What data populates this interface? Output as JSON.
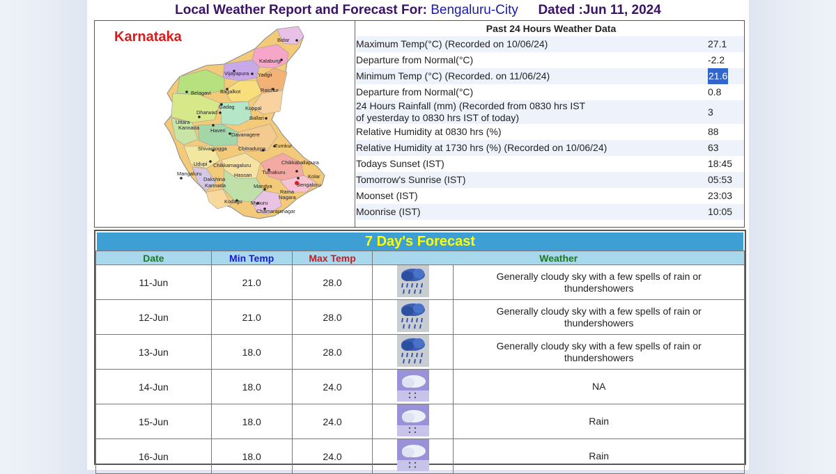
{
  "header": {
    "prefix": "Local Weather Report and Forecast For:",
    "city": "Bengaluru-City",
    "dated": "Dated :Jun 11, 2024"
  },
  "map": {
    "title": "Karnataka",
    "places": [
      "Bidar",
      "Kalaburgi",
      "Vijayapura",
      "Yadgir",
      "Belagavi",
      "Bagalkot",
      "Raichur",
      "Gadag",
      "Koppal",
      "Dharwad",
      "Ballari",
      "Uttara",
      "Kannada",
      "Haveri",
      "Davanagere",
      "Shivamogga",
      "Chitradurga",
      "Tumkur",
      "Udupi",
      "Chikkamagaluru",
      "Chikkaballapura",
      "Mangaluru",
      "Hassan",
      "Tumakuru",
      "Dakshina",
      "Kannada",
      "Kolar",
      "Bengaluru",
      "Mandya",
      "Rama",
      "Nagara",
      "Kodagu",
      "Mysuru",
      "Chamarajanagar"
    ]
  },
  "past24": {
    "title": "Past 24 Hours Weather Data",
    "rows": [
      {
        "label": "Maximum Temp(°C) (Recorded on 10/06/24)",
        "value": "27.1"
      },
      {
        "label": "Departure from Normal(°C)",
        "value": "-2.2"
      },
      {
        "label": "Minimum Temp (°C) (Recorded. on 11/06/24)",
        "value": "21.6"
      },
      {
        "label": "Departure from Normal(°C)",
        "value": "0.8"
      },
      {
        "label": "24 Hours Rainfall (mm) (Recorded from 0830 hrs IST",
        "label2": "of yesterday to 0830 hrs IST of today)",
        "value": "3"
      },
      {
        "label": "Relative Humidity at 0830 hrs (%)",
        "value": "88"
      },
      {
        "label": "Relative Humidity at 1730 hrs (%) (Recorded on 10/06/24)",
        "value": "63"
      },
      {
        "label": "Todays Sunset (IST)",
        "value": "18:45"
      },
      {
        "label": "Tomorrow's Sunrise (IST)",
        "value": "05:53"
      },
      {
        "label": "Moonset (IST)",
        "value": "23:03"
      },
      {
        "label": "Moonrise (IST)",
        "value": "10:05"
      }
    ]
  },
  "forecast": {
    "title": "7 Day's Forecast",
    "headers": {
      "date": "Date",
      "min": "Min Temp",
      "max": "Max Temp",
      "weather": "Weather"
    },
    "rows": [
      {
        "date": "11-Jun",
        "min": "21.0",
        "max": "28.0",
        "icon": "thunderstorm-icon",
        "weather": "Generally cloudy sky with a few spells of rain or thundershowers"
      },
      {
        "date": "12-Jun",
        "min": "21.0",
        "max": "28.0",
        "icon": "thunderstorm-icon",
        "weather": "Generally cloudy sky with a few spells of rain or thundershowers"
      },
      {
        "date": "13-Jun",
        "min": "18.0",
        "max": "28.0",
        "icon": "thunderstorm-icon",
        "weather": "Generally cloudy sky with a few spells of rain or thundershowers"
      },
      {
        "date": "14-Jun",
        "min": "18.0",
        "max": "24.0",
        "icon": "rain-icon",
        "weather": "NA"
      },
      {
        "date": "15-Jun",
        "min": "18.0",
        "max": "24.0",
        "icon": "rain-icon",
        "weather": "Rain"
      },
      {
        "date": "16-Jun",
        "min": "18.0",
        "max": "24.0",
        "icon": "rain-icon",
        "weather": "Rain"
      }
    ]
  },
  "colors": {
    "header_text": "#3a1266",
    "city_text": "#1a1aa6",
    "forecast_bar": "#3d9fd3",
    "forecast_title": "#ffff00",
    "table_header_bg": "#a8d8ee",
    "date_text": "#b22222",
    "highlight": "#3366cc"
  }
}
